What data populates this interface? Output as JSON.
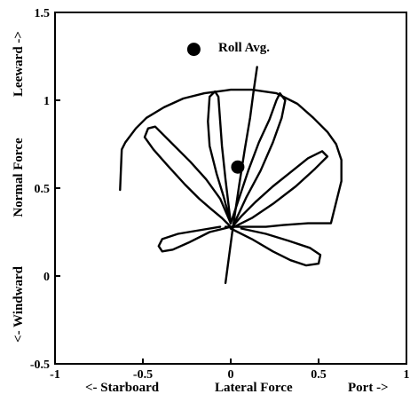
{
  "chart_data": {
    "type": "line",
    "xlim": [
      -1,
      1
    ],
    "ylim": [
      -0.5,
      1.5
    ],
    "grid": false,
    "legend": "top-center",
    "x_ticks": [
      {
        "value": -1,
        "label": "-1"
      },
      {
        "value": -0.5,
        "label": "-0.5"
      },
      {
        "value": 0,
        "label": "0"
      },
      {
        "value": 0.5,
        "label": "0.5"
      },
      {
        "value": 1,
        "label": "1"
      }
    ],
    "y_ticks": [
      {
        "value": -0.5,
        "label": "-0.5"
      },
      {
        "value": 0,
        "label": "0"
      },
      {
        "value": 0.5,
        "label": "0.5"
      },
      {
        "value": 1,
        "label": "1"
      },
      {
        "value": 1.5,
        "label": "1.5"
      }
    ],
    "xlabel_left": "<- Starboard",
    "xlabel": "Lateral Force",
    "xlabel_right": "Port ->",
    "ylabel_bottom": "<- Windward",
    "ylabel": "Normal Force",
    "ylabel_top": "Leeward ->",
    "series": [
      {
        "role": "outer-envelope",
        "points": [
          [
            -0.63,
            0.49
          ],
          [
            -0.62,
            0.72
          ],
          [
            -0.6,
            0.76
          ],
          [
            -0.54,
            0.84
          ],
          [
            -0.48,
            0.9
          ],
          [
            -0.38,
            0.96
          ],
          [
            -0.27,
            1.01
          ],
          [
            -0.15,
            1.04
          ],
          [
            0,
            1.06
          ],
          [
            0.12,
            1.06
          ],
          [
            0.26,
            1.04
          ],
          [
            0.38,
            0.98
          ],
          [
            0.47,
            0.9
          ],
          [
            0.55,
            0.82
          ],
          [
            0.6,
            0.75
          ],
          [
            0.63,
            0.66
          ],
          [
            0.63,
            0.54
          ],
          [
            0.6,
            0.42
          ],
          [
            0.57,
            0.3
          ],
          [
            0.44,
            0.3
          ],
          [
            0.3,
            0.29
          ],
          [
            0.2,
            0.28
          ],
          [
            0.12,
            0.28
          ],
          [
            0.02,
            0.28
          ],
          [
            -0.03,
            0.28
          ]
        ]
      },
      {
        "role": "lobe-1",
        "points": [
          [
            0,
            0.28
          ],
          [
            -0.05,
            0.33
          ],
          [
            -0.11,
            0.38
          ],
          [
            -0.18,
            0.44
          ],
          [
            -0.26,
            0.52
          ],
          [
            -0.36,
            0.63
          ],
          [
            -0.44,
            0.72
          ],
          [
            -0.49,
            0.79
          ],
          [
            -0.47,
            0.84
          ],
          [
            -0.43,
            0.85
          ],
          [
            -0.35,
            0.77
          ],
          [
            -0.23,
            0.65
          ],
          [
            -0.14,
            0.55
          ],
          [
            -0.06,
            0.44
          ],
          [
            0,
            0.3
          ]
        ]
      },
      {
        "role": "lobe-2",
        "points": [
          [
            0,
            0.3
          ],
          [
            -0.04,
            0.45
          ],
          [
            -0.08,
            0.58
          ],
          [
            -0.12,
            0.74
          ],
          [
            -0.13,
            0.88
          ],
          [
            -0.12,
            1.02
          ],
          [
            -0.09,
            1.05
          ],
          [
            -0.07,
            1.02
          ],
          [
            -0.06,
            0.88
          ],
          [
            -0.05,
            0.74
          ],
          [
            -0.03,
            0.55
          ],
          [
            0,
            0.3
          ]
        ]
      },
      {
        "role": "lobe-3",
        "points": [
          [
            0,
            0.3
          ],
          [
            0.05,
            0.45
          ],
          [
            0.1,
            0.6
          ],
          [
            0.16,
            0.76
          ],
          [
            0.22,
            0.89
          ],
          [
            0.26,
            1.0
          ],
          [
            0.28,
            1.04
          ],
          [
            0.31,
            1.0
          ],
          [
            0.29,
            0.9
          ],
          [
            0.24,
            0.76
          ],
          [
            0.17,
            0.6
          ],
          [
            0.09,
            0.45
          ],
          [
            0.02,
            0.3
          ]
        ]
      },
      {
        "role": "lobe-4",
        "points": [
          [
            0,
            0.27
          ],
          [
            0.06,
            0.34
          ],
          [
            0.14,
            0.42
          ],
          [
            0.24,
            0.51
          ],
          [
            0.34,
            0.59
          ],
          [
            0.44,
            0.67
          ],
          [
            0.52,
            0.71
          ],
          [
            0.55,
            0.68
          ],
          [
            0.48,
            0.61
          ],
          [
            0.37,
            0.51
          ],
          [
            0.24,
            0.41
          ],
          [
            0.12,
            0.33
          ],
          [
            0.02,
            0.28
          ]
        ]
      },
      {
        "role": "lower-right-lobe",
        "points": [
          [
            0,
            0.27
          ],
          [
            0.12,
            0.21
          ],
          [
            0.24,
            0.14
          ],
          [
            0.34,
            0.09
          ],
          [
            0.43,
            0.06
          ],
          [
            0.5,
            0.07
          ],
          [
            0.51,
            0.12
          ],
          [
            0.45,
            0.16
          ],
          [
            0.33,
            0.2
          ],
          [
            0.2,
            0.24
          ],
          [
            0.06,
            0.27
          ]
        ]
      },
      {
        "role": "lower-left-lobe",
        "points": [
          [
            0,
            0.28
          ],
          [
            -0.12,
            0.25
          ],
          [
            -0.24,
            0.19
          ],
          [
            -0.33,
            0.15
          ],
          [
            -0.39,
            0.14
          ],
          [
            -0.41,
            0.17
          ],
          [
            -0.39,
            0.21
          ],
          [
            -0.3,
            0.24
          ],
          [
            -0.18,
            0.26
          ],
          [
            -0.06,
            0.28
          ]
        ]
      },
      {
        "role": "roll-line",
        "points": [
          [
            -0.03,
            -0.04
          ],
          [
            0.01,
            0.26
          ],
          [
            0.05,
            0.53
          ],
          [
            0.08,
            0.72
          ],
          [
            0.11,
            0.9
          ],
          [
            0.13,
            1.05
          ],
          [
            0.15,
            1.19
          ]
        ]
      }
    ],
    "markers": [
      {
        "label": "Roll Avg.",
        "x": -0.21,
        "y": 1.29
      },
      {
        "label": "",
        "x": 0.04,
        "y": 0.62
      }
    ]
  }
}
